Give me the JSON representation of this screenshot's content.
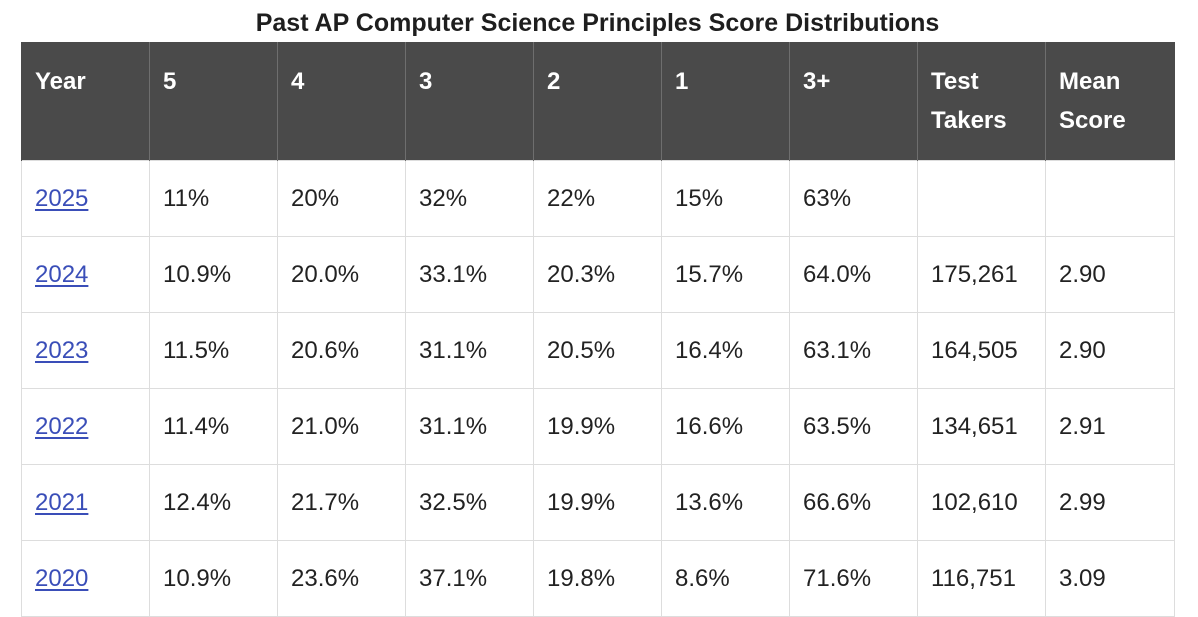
{
  "caption": "Past AP Computer Science Principles Score Distributions",
  "headers": {
    "year": "Year",
    "s5": "5",
    "s4": "4",
    "s3": "3",
    "s2": "2",
    "s1": "1",
    "s3plus": "3+",
    "test_takers_1": "Test",
    "test_takers_2": "Takers",
    "mean_1": "Mean",
    "mean_2": "Score"
  },
  "rows": [
    {
      "year": "2025",
      "s5": "11%",
      "s4": "20%",
      "s3": "32%",
      "s2": "22%",
      "s1": "15%",
      "s3plus": "63%",
      "takers": "",
      "mean": ""
    },
    {
      "year": "2024",
      "s5": "10.9%",
      "s4": "20.0%",
      "s3": "33.1%",
      "s2": "20.3%",
      "s1": "15.7%",
      "s3plus": "64.0%",
      "takers": "175,261",
      "mean": "2.90"
    },
    {
      "year": "2023",
      "s5": "11.5%",
      "s4": "20.6%",
      "s3": "31.1%",
      "s2": "20.5%",
      "s1": "16.4%",
      "s3plus": "63.1%",
      "takers": "164,505",
      "mean": "2.90"
    },
    {
      "year": "2022",
      "s5": "11.4%",
      "s4": "21.0%",
      "s3": "31.1%",
      "s2": "19.9%",
      "s1": "16.6%",
      "s3plus": "63.5%",
      "takers": "134,651",
      "mean": "2.91"
    },
    {
      "year": "2021",
      "s5": "12.4%",
      "s4": "21.7%",
      "s3": "32.5%",
      "s2": "19.9%",
      "s1": "13.6%",
      "s3plus": "66.6%",
      "takers": "102,610",
      "mean": "2.99"
    },
    {
      "year": "2020",
      "s5": "10.9%",
      "s4": "23.6%",
      "s3": "37.1%",
      "s2": "19.8%",
      "s1": "8.6%",
      "s3plus": "71.6%",
      "takers": "116,751",
      "mean": "3.09"
    }
  ],
  "colors": {
    "header_bg": "#4a4a4a",
    "link": "#3a4eb8",
    "grid": "#dddddd"
  }
}
